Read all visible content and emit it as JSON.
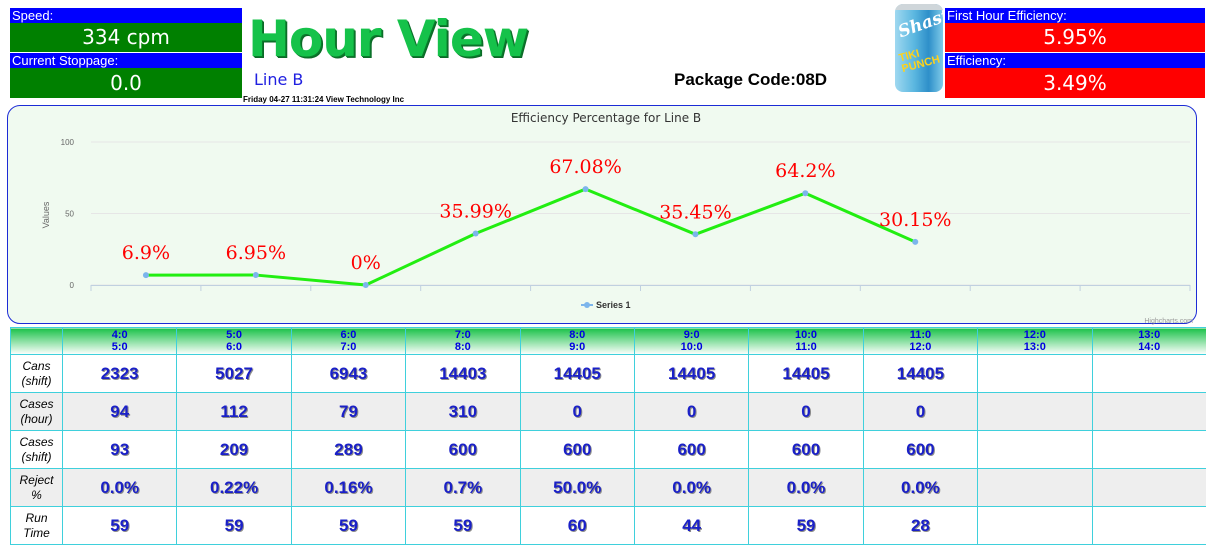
{
  "header": {
    "speed_label": "Speed:",
    "speed_value": "334 cpm",
    "stoppage_label": "Current Stoppage:",
    "stoppage_value": "0.0",
    "title": "Hour View",
    "line_name": "Line B",
    "datetime": "Friday 04-27 11:31:24  View Technology Inc",
    "package_code": "Package Code:08D",
    "can_brand": "Shasta",
    "can_flavor": "TIKI PUNCH",
    "first_hour_eff_label": "First Hour Efficiency:",
    "first_hour_eff_value": "5.95%",
    "eff_label": "Efficiency:",
    "eff_value": "3.49%"
  },
  "colors": {
    "label_bg": "#0000ff",
    "good": "#008000",
    "bad": "#ff0000",
    "series_line": "#22ee11",
    "point": "#7cb5ec",
    "data_label": "#ff0000",
    "title_green": "#15c24a"
  },
  "chart_data": {
    "type": "line",
    "title": "Efficiency Percentage for Line B",
    "ylabel": "Values",
    "xlabel": "",
    "ylim": [
      0,
      100
    ],
    "yticks": [
      0,
      50,
      100
    ],
    "x": [
      0,
      1,
      2,
      3,
      4,
      5,
      6,
      7
    ],
    "series": [
      {
        "name": "Series 1",
        "values": [
          6.9,
          6.95,
          0,
          35.99,
          67.08,
          35.45,
          64.2,
          30.15
        ],
        "labels": [
          "6.9%",
          "6.95%",
          "0%",
          "35.99%",
          "67.08%",
          "35.45%",
          "64.2%",
          "30.15%"
        ]
      }
    ],
    "grid": true,
    "legend": "bottom-center",
    "credits": "Highcharts.com"
  },
  "table": {
    "columns": [
      {
        "from": "4:0",
        "to": "5:0"
      },
      {
        "from": "5:0",
        "to": "6:0"
      },
      {
        "from": "6:0",
        "to": "7:0"
      },
      {
        "from": "7:0",
        "to": "8:0"
      },
      {
        "from": "8:0",
        "to": "9:0"
      },
      {
        "from": "9:0",
        "to": "10:0"
      },
      {
        "from": "10:0",
        "to": "11:0"
      },
      {
        "from": "11:0",
        "to": "12:0"
      },
      {
        "from": "12:0",
        "to": "13:0"
      },
      {
        "from": "13:0",
        "to": "14:0"
      }
    ],
    "rows": [
      {
        "label1": "Cans",
        "label2": "(shift)",
        "cells": [
          "2323",
          "5027",
          "6943",
          "14403",
          "14405",
          "14405",
          "14405",
          "14405",
          "",
          ""
        ]
      },
      {
        "label1": "Cases",
        "label2": "(hour)",
        "cells": [
          "94",
          "112",
          "79",
          "310",
          "0",
          "0",
          "0",
          "0",
          "",
          ""
        ]
      },
      {
        "label1": "Cases",
        "label2": "(shift)",
        "cells": [
          "93",
          "209",
          "289",
          "600",
          "600",
          "600",
          "600",
          "600",
          "",
          ""
        ]
      },
      {
        "label1": "Reject",
        "label2": "%",
        "cells": [
          "0.0%",
          "0.22%",
          "0.16%",
          "0.7%",
          "50.0%",
          "0.0%",
          "0.0%",
          "0.0%",
          "",
          ""
        ]
      },
      {
        "label1": "Run",
        "label2": "Time",
        "cells": [
          "59",
          "59",
          "59",
          "59",
          "60",
          "44",
          "59",
          "28",
          "",
          ""
        ]
      }
    ]
  }
}
